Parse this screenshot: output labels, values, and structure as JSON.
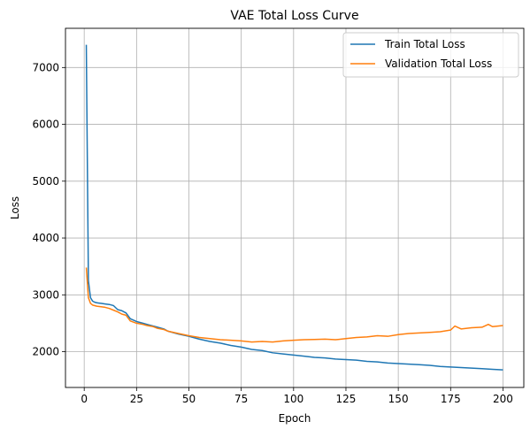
{
  "chart_data": {
    "type": "line",
    "title": "VAE Total Loss Curve",
    "xlabel": "Epoch",
    "ylabel": "Loss",
    "xlim": [
      -8.95,
      209.95
    ],
    "ylim": [
      1370,
      7690
    ],
    "xticks": [
      0,
      25,
      50,
      75,
      100,
      125,
      150,
      175,
      200
    ],
    "yticks": [
      2000,
      3000,
      4000,
      5000,
      6000,
      7000
    ],
    "grid": true,
    "legend_position": "top-right",
    "series": [
      {
        "name": "Train Total Loss",
        "color": "#1f77b4",
        "x": [
          1,
          2,
          3,
          4,
          5,
          6,
          7,
          8,
          9,
          10,
          12,
          14,
          16,
          18,
          20,
          22,
          25,
          28,
          30,
          33,
          35,
          38,
          40,
          45,
          50,
          55,
          60,
          65,
          70,
          75,
          80,
          85,
          90,
          95,
          100,
          105,
          110,
          115,
          120,
          125,
          130,
          135,
          140,
          145,
          150,
          155,
          160,
          165,
          170,
          175,
          180,
          185,
          190,
          195,
          200
        ],
        "y": [
          7400,
          3250,
          2950,
          2890,
          2870,
          2860,
          2855,
          2850,
          2845,
          2840,
          2830,
          2810,
          2740,
          2720,
          2680,
          2580,
          2530,
          2500,
          2480,
          2450,
          2430,
          2400,
          2360,
          2310,
          2270,
          2220,
          2180,
          2150,
          2110,
          2080,
          2040,
          2020,
          1980,
          1960,
          1940,
          1920,
          1900,
          1890,
          1870,
          1860,
          1850,
          1830,
          1820,
          1800,
          1790,
          1780,
          1770,
          1760,
          1740,
          1730,
          1720,
          1710,
          1700,
          1690,
          1680
        ]
      },
      {
        "name": "Validation Total Loss",
        "color": "#ff7f0e",
        "x": [
          1,
          2,
          3,
          4,
          5,
          6,
          8,
          10,
          12,
          14,
          16,
          18,
          20,
          22,
          25,
          28,
          30,
          33,
          35,
          38,
          40,
          45,
          50,
          55,
          60,
          65,
          70,
          75,
          80,
          85,
          90,
          95,
          100,
          105,
          110,
          115,
          120,
          125,
          130,
          135,
          140,
          145,
          150,
          155,
          160,
          165,
          170,
          175,
          177,
          180,
          185,
          190,
          193,
          195,
          200
        ],
        "y": [
          3480,
          2950,
          2850,
          2820,
          2810,
          2800,
          2790,
          2780,
          2760,
          2730,
          2700,
          2660,
          2640,
          2540,
          2500,
          2480,
          2460,
          2440,
          2410,
          2390,
          2360,
          2320,
          2280,
          2250,
          2230,
          2210,
          2200,
          2190,
          2170,
          2180,
          2170,
          2190,
          2200,
          2210,
          2215,
          2220,
          2210,
          2230,
          2250,
          2260,
          2280,
          2270,
          2300,
          2320,
          2330,
          2340,
          2350,
          2380,
          2450,
          2400,
          2420,
          2430,
          2480,
          2440,
          2460
        ]
      }
    ]
  }
}
